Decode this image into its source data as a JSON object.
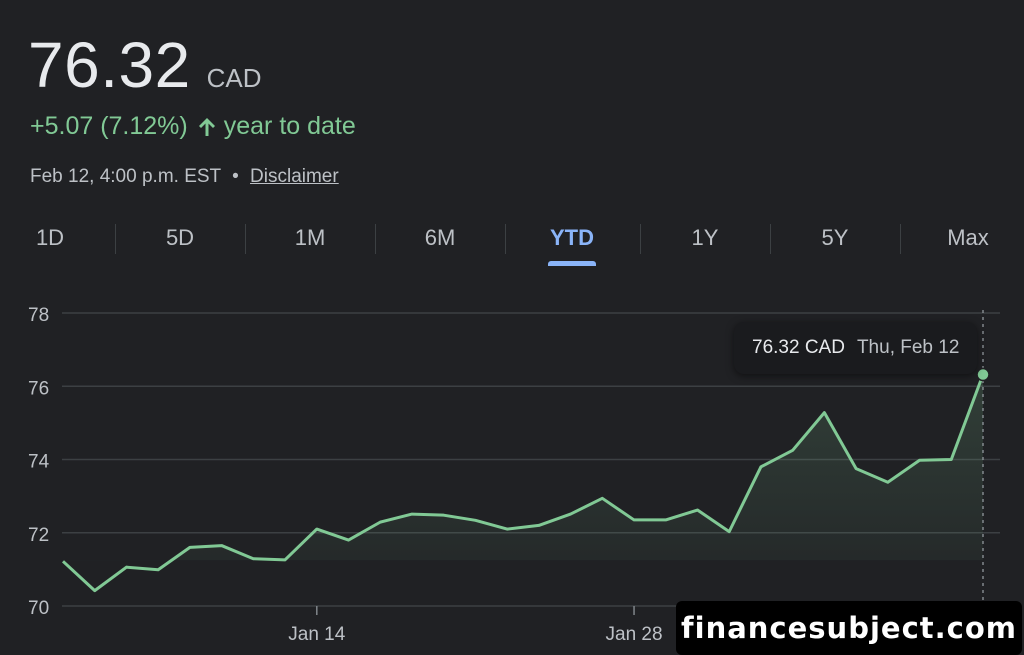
{
  "quote": {
    "price": "76.32",
    "currency": "CAD",
    "change": "+5.07 (7.12%)",
    "change_period": "year to date",
    "timestamp": "Feb 12, 4:00 p.m. EST",
    "separator": "•",
    "disclaimer_label": "Disclaimer"
  },
  "tabs": [
    {
      "label": "1D",
      "active": false
    },
    {
      "label": "5D",
      "active": false
    },
    {
      "label": "1M",
      "active": false
    },
    {
      "label": "6M",
      "active": false
    },
    {
      "label": "YTD",
      "active": true
    },
    {
      "label": "1Y",
      "active": false
    },
    {
      "label": "5Y",
      "active": false
    },
    {
      "label": "Max",
      "active": false
    }
  ],
  "tooltip": {
    "price": "76.32 CAD",
    "date": "Thu, Feb 12"
  },
  "watermark": "financesubject.com",
  "colors": {
    "background": "#202124",
    "positive": "#81c995",
    "accent": "#8ab4f8",
    "gridline": "#3c4043"
  },
  "chart_data": {
    "type": "area",
    "y_ticks": [
      70,
      72,
      74,
      76,
      78
    ],
    "ylim": [
      70,
      78
    ],
    "x_tick_labels": [
      "Jan 14",
      "Jan 28"
    ],
    "baseline": 71.25,
    "grid": true,
    "series": [
      {
        "values": [
          71.22,
          70.42,
          71.06,
          70.99,
          71.6,
          71.65,
          71.29,
          71.26,
          72.1,
          71.8,
          72.29,
          72.51,
          72.48,
          72.34,
          72.1,
          72.2,
          72.51,
          72.94,
          72.35,
          72.35,
          72.62,
          72.03,
          73.8,
          74.25,
          75.28,
          73.75,
          73.38,
          73.98,
          74.0,
          76.32
        ]
      }
    ]
  }
}
